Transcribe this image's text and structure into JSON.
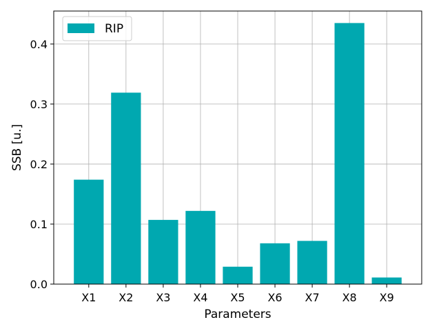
{
  "chart_data": {
    "type": "bar",
    "title": "",
    "xlabel": "Parameters",
    "ylabel": "SSB [u.]",
    "categories": [
      "X1",
      "X2",
      "X3",
      "X4",
      "X5",
      "X6",
      "X7",
      "X8",
      "X9"
    ],
    "series": [
      {
        "name": "RIP",
        "color": "#00a8b0",
        "values": [
          0.174,
          0.319,
          0.107,
          0.122,
          0.029,
          0.068,
          0.072,
          0.435,
          0.011
        ]
      }
    ],
    "ylim": [
      0,
      0.455
    ],
    "yticks": [
      0.0,
      0.1,
      0.2,
      0.3,
      0.4
    ],
    "ytick_labels": [
      "0.0",
      "0.1",
      "0.2",
      "0.3",
      "0.4"
    ],
    "grid": true,
    "legend_position": "top-left"
  }
}
